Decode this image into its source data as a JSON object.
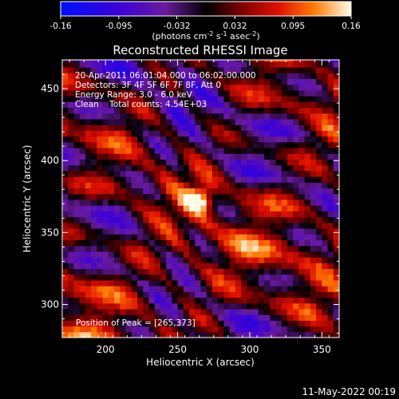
{
  "chart_data": {
    "type": "heatmap",
    "title": "Reconstructed RHESSI Image",
    "xlabel": "Heliocentric X (arcsec)",
    "ylabel": "Heliocentric Y (arcsec)",
    "xlim": [
      170,
      362
    ],
    "ylim": [
      277,
      470
    ],
    "x_ticks": [
      200,
      250,
      300,
      350
    ],
    "y_ticks": [
      300,
      350,
      400,
      450
    ],
    "colorbar": {
      "ticks": [
        "-0.16",
        "-0.095",
        "-0.032",
        "0.032",
        "0.095",
        "0.16"
      ],
      "range": [
        -0.16,
        0.16
      ],
      "unit_label": "(photons cm",
      "unit_exp1": "-2",
      "unit_mid": " s",
      "unit_exp2": "-1",
      "unit_mid2": " asec",
      "unit_exp3": "-2",
      "unit_end": ")"
    },
    "info_lines": [
      "20-Apr-2011 06:01:04.000 to 06:02:00.000",
      "Detectors: 3F 4F 5F 6F 7F 8F, Att 0",
      "Energy Range: 3.0 - 6.0 keV",
      "Clean    Total counts: 4.54E+03"
    ],
    "peak": {
      "label": "Position of Peak = [265,373]",
      "x": 265,
      "y": 373,
      "value": 0.16
    }
  },
  "footer": {
    "timestamp": "11-May-2022 00:19"
  }
}
